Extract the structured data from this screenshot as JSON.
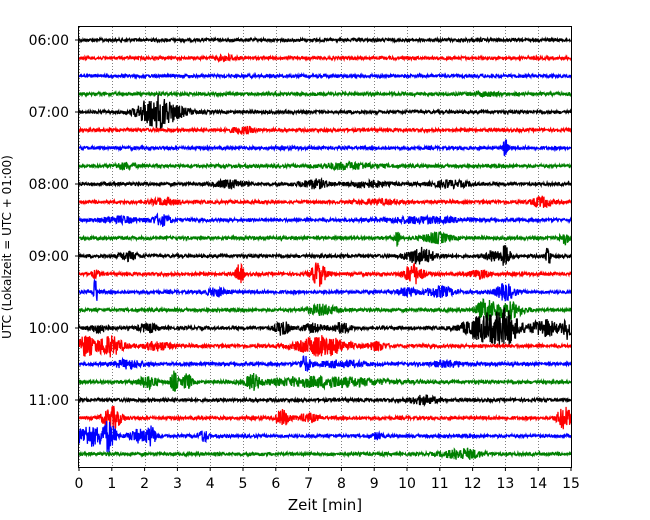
{
  "chart_data": {
    "type": "line",
    "xlabel": "Zeit  [min]",
    "ylabel": "UTC (Lokalzeit = UTC + 01:00)",
    "xlim": [
      0,
      15
    ],
    "x_ticks": [
      "0",
      "1",
      "2",
      "3",
      "4",
      "5",
      "6",
      "7",
      "8",
      "9",
      "10",
      "11",
      "12",
      "13",
      "14",
      "15"
    ],
    "y_ticks": [
      "06:00",
      "07:00",
      "08:00",
      "09:00",
      "10:00",
      "11:00"
    ],
    "y_tick_offsets_min": [
      0,
      60,
      120,
      180,
      240,
      300
    ],
    "trace_interval_min": 15,
    "start_time": "06:00",
    "grid": "vertical dotted",
    "series_colors": [
      "#000000",
      "#ff0000",
      "#0000ff",
      "#008000"
    ],
    "traces": [
      {
        "start": "06:00",
        "color": "#000000",
        "bursts": []
      },
      {
        "start": "06:15",
        "color": "#ff0000",
        "bursts": [
          [
            4.5,
            2.5,
            0.2
          ]
        ]
      },
      {
        "start": "06:30",
        "color": "#0000ff",
        "bursts": []
      },
      {
        "start": "06:45",
        "color": "#008000",
        "bursts": [
          [
            12.4,
            1.5,
            0.3
          ]
        ]
      },
      {
        "start": "07:00",
        "color": "#000000",
        "bursts": [
          [
            2.3,
            14,
            0.35
          ],
          [
            2.8,
            5,
            0.4
          ]
        ]
      },
      {
        "start": "07:15",
        "color": "#ff0000",
        "bursts": [
          [
            5.0,
            3,
            0.25
          ]
        ]
      },
      {
        "start": "07:30",
        "color": "#0000ff",
        "bursts": [
          [
            13.0,
            9,
            0.05
          ]
        ]
      },
      {
        "start": "07:45",
        "color": "#008000",
        "bursts": [
          [
            1.4,
            3,
            0.2
          ],
          [
            8.2,
            3,
            0.6
          ]
        ]
      },
      {
        "start": "08:00",
        "color": "#000000",
        "bursts": [
          [
            4.6,
            4,
            0.3
          ],
          [
            7.2,
            4,
            0.3
          ],
          [
            8.8,
            3,
            0.4
          ],
          [
            11.3,
            3,
            0.4
          ]
        ]
      },
      {
        "start": "08:15",
        "color": "#ff0000",
        "bursts": [
          [
            2.6,
            3,
            0.3
          ],
          [
            9.2,
            2,
            0.5
          ],
          [
            14.1,
            5,
            0.2
          ]
        ]
      },
      {
        "start": "08:30",
        "color": "#0000ff",
        "bursts": [
          [
            1.2,
            3,
            0.4
          ],
          [
            2.5,
            5,
            0.2
          ],
          [
            10.5,
            3,
            0.8
          ]
        ]
      },
      {
        "start": "08:45",
        "color": "#008000",
        "bursts": [
          [
            9.7,
            8,
            0.05
          ],
          [
            10.9,
            5,
            0.3
          ],
          [
            14.8,
            6,
            0.1
          ]
        ]
      },
      {
        "start": "09:00",
        "color": "#000000",
        "bursts": [
          [
            1.5,
            4,
            0.2
          ],
          [
            10.4,
            8,
            0.3
          ],
          [
            12.6,
            5,
            0.15
          ],
          [
            13.0,
            10,
            0.1
          ],
          [
            14.3,
            12,
            0.05
          ]
        ]
      },
      {
        "start": "09:15",
        "color": "#ff0000",
        "bursts": [
          [
            0.5,
            3,
            0.1
          ],
          [
            4.9,
            10,
            0.08
          ],
          [
            7.3,
            12,
            0.15
          ],
          [
            10.2,
            10,
            0.2
          ],
          [
            12.2,
            4,
            0.2
          ]
        ]
      },
      {
        "start": "09:30",
        "color": "#0000ff",
        "bursts": [
          [
            0.5,
            14,
            0.05
          ],
          [
            4.2,
            4,
            0.2
          ],
          [
            10.0,
            4,
            0.2
          ],
          [
            11.0,
            5,
            0.3
          ],
          [
            13.0,
            8,
            0.2
          ]
        ]
      },
      {
        "start": "09:45",
        "color": "#008000",
        "bursts": [
          [
            7.4,
            5,
            0.3
          ],
          [
            12.4,
            10,
            0.2
          ],
          [
            13.1,
            8,
            0.3
          ]
        ]
      },
      {
        "start": "10:00",
        "color": "#000000",
        "bursts": [
          [
            0.6,
            4,
            0.2
          ],
          [
            2.1,
            4,
            0.2
          ],
          [
            6.2,
            7,
            0.15
          ],
          [
            7.1,
            4,
            0.2
          ],
          [
            8.0,
            5,
            0.2
          ],
          [
            12.3,
            12,
            0.4
          ],
          [
            13.0,
            16,
            0.3
          ],
          [
            14.2,
            8,
            0.3
          ],
          [
            14.9,
            10,
            0.1
          ]
        ]
      },
      {
        "start": "10:15",
        "color": "#ff0000",
        "bursts": [
          [
            0.2,
            10,
            0.15
          ],
          [
            0.9,
            10,
            0.3
          ],
          [
            2.4,
            4,
            0.3
          ],
          [
            7.4,
            10,
            0.5
          ],
          [
            9.1,
            4,
            0.2
          ]
        ]
      },
      {
        "start": "10:30",
        "color": "#0000ff",
        "bursts": [
          [
            1.5,
            4,
            0.3
          ],
          [
            6.9,
            8,
            0.1
          ],
          [
            8.0,
            3,
            0.5
          ],
          [
            11.2,
            3,
            0.3
          ]
        ]
      },
      {
        "start": "10:45",
        "color": "#008000",
        "bursts": [
          [
            2.1,
            6,
            0.2
          ],
          [
            2.9,
            10,
            0.08
          ],
          [
            3.3,
            8,
            0.1
          ],
          [
            5.3,
            7,
            0.15
          ],
          [
            7.5,
            5,
            1.2
          ]
        ]
      },
      {
        "start": "11:00",
        "color": "#000000",
        "bursts": [
          [
            10.5,
            4,
            0.3
          ]
        ]
      },
      {
        "start": "11:15",
        "color": "#ff0000",
        "bursts": [
          [
            1.0,
            11,
            0.2
          ],
          [
            6.2,
            8,
            0.15
          ],
          [
            7.0,
            4,
            0.2
          ],
          [
            14.8,
            11,
            0.15
          ]
        ]
      },
      {
        "start": "11:30",
        "color": "#0000ff",
        "bursts": [
          [
            0.3,
            10,
            0.3
          ],
          [
            0.9,
            14,
            0.15
          ],
          [
            1.8,
            6,
            0.2
          ],
          [
            2.2,
            9,
            0.1
          ],
          [
            3.8,
            6,
            0.1
          ],
          [
            9.1,
            3,
            0.1
          ]
        ]
      },
      {
        "start": "11:45",
        "color": "#008000",
        "bursts": [
          [
            11.7,
            5,
            0.4
          ]
        ]
      }
    ]
  }
}
